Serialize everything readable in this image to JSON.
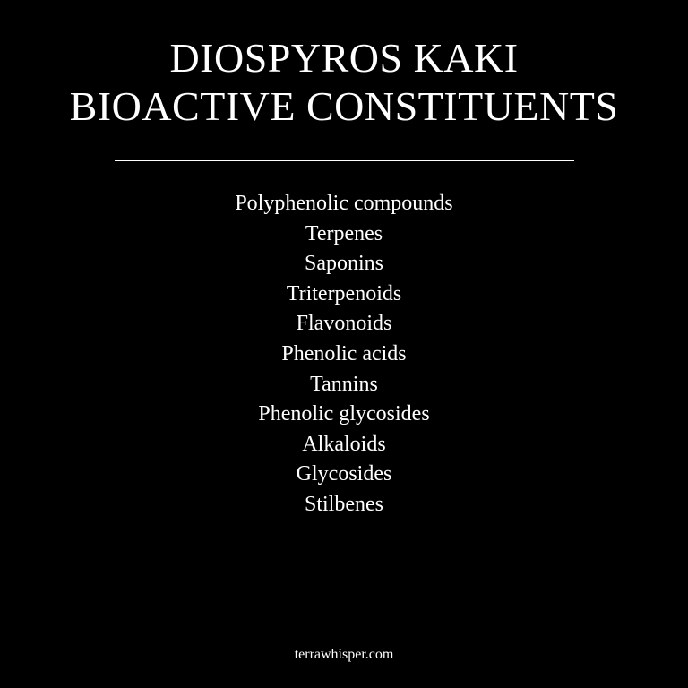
{
  "title": {
    "line1": "DIOSPYROS KAKI",
    "line2": "BIOACTIVE CONSTITUENTS"
  },
  "constituents": [
    "Polyphenolic compounds",
    "Terpenes",
    "Saponins",
    "Triterpenoids",
    "Flavonoids",
    "Phenolic acids",
    "Tannins",
    "Phenolic glycosides",
    "Alkaloids",
    "Glycosides",
    "Stilbenes"
  ],
  "footer": {
    "site": "terrawhisper.com"
  },
  "colors": {
    "background": "#000000",
    "text": "#ffffff"
  }
}
